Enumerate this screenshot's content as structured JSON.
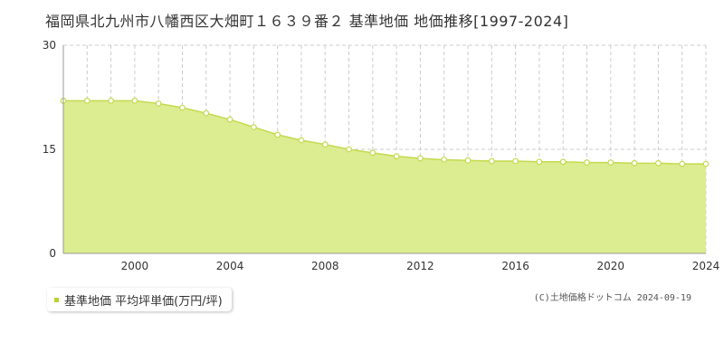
{
  "page": {
    "title": "福岡県北九州市八幡西区大畑町１６３９番２ 基準地価 地価推移[1997-2024]",
    "credit": "(C)土地価格ドットコム 2024-09-19"
  },
  "colors": {
    "area_fill": "#dcec90",
    "line": "#c4da4e",
    "marker_fill": "#ffffff",
    "legend_swatch": "#b5d330",
    "grid": "#cccccc"
  },
  "chart_data": {
    "type": "area",
    "title": "福岡県北九州市八幡西区大畑町１６３９番２ 基準地価 地価推移[1997-2024]",
    "xlabel": "",
    "ylabel": "",
    "xlim": [
      1997,
      2024
    ],
    "ylim": [
      0,
      30
    ],
    "yticks": [
      0,
      15,
      30
    ],
    "xticks": [
      2000,
      2004,
      2008,
      2012,
      2016,
      2020,
      2024
    ],
    "grid": true,
    "legend_position": "bottom-left",
    "series": [
      {
        "name": "基準地価 平均坪単価(万円/坪)",
        "x": [
          1997,
          1998,
          1999,
          2000,
          2001,
          2002,
          2003,
          2004,
          2005,
          2006,
          2007,
          2008,
          2009,
          2010,
          2011,
          2012,
          2013,
          2014,
          2015,
          2016,
          2017,
          2018,
          2019,
          2020,
          2021,
          2022,
          2023,
          2024
        ],
        "values": [
          22.0,
          22.0,
          22.0,
          22.0,
          21.6,
          21.0,
          20.2,
          19.3,
          18.2,
          17.1,
          16.3,
          15.7,
          15.0,
          14.5,
          14.0,
          13.7,
          13.5,
          13.4,
          13.3,
          13.3,
          13.2,
          13.2,
          13.1,
          13.1,
          13.0,
          13.0,
          12.9,
          12.9
        ]
      }
    ]
  }
}
